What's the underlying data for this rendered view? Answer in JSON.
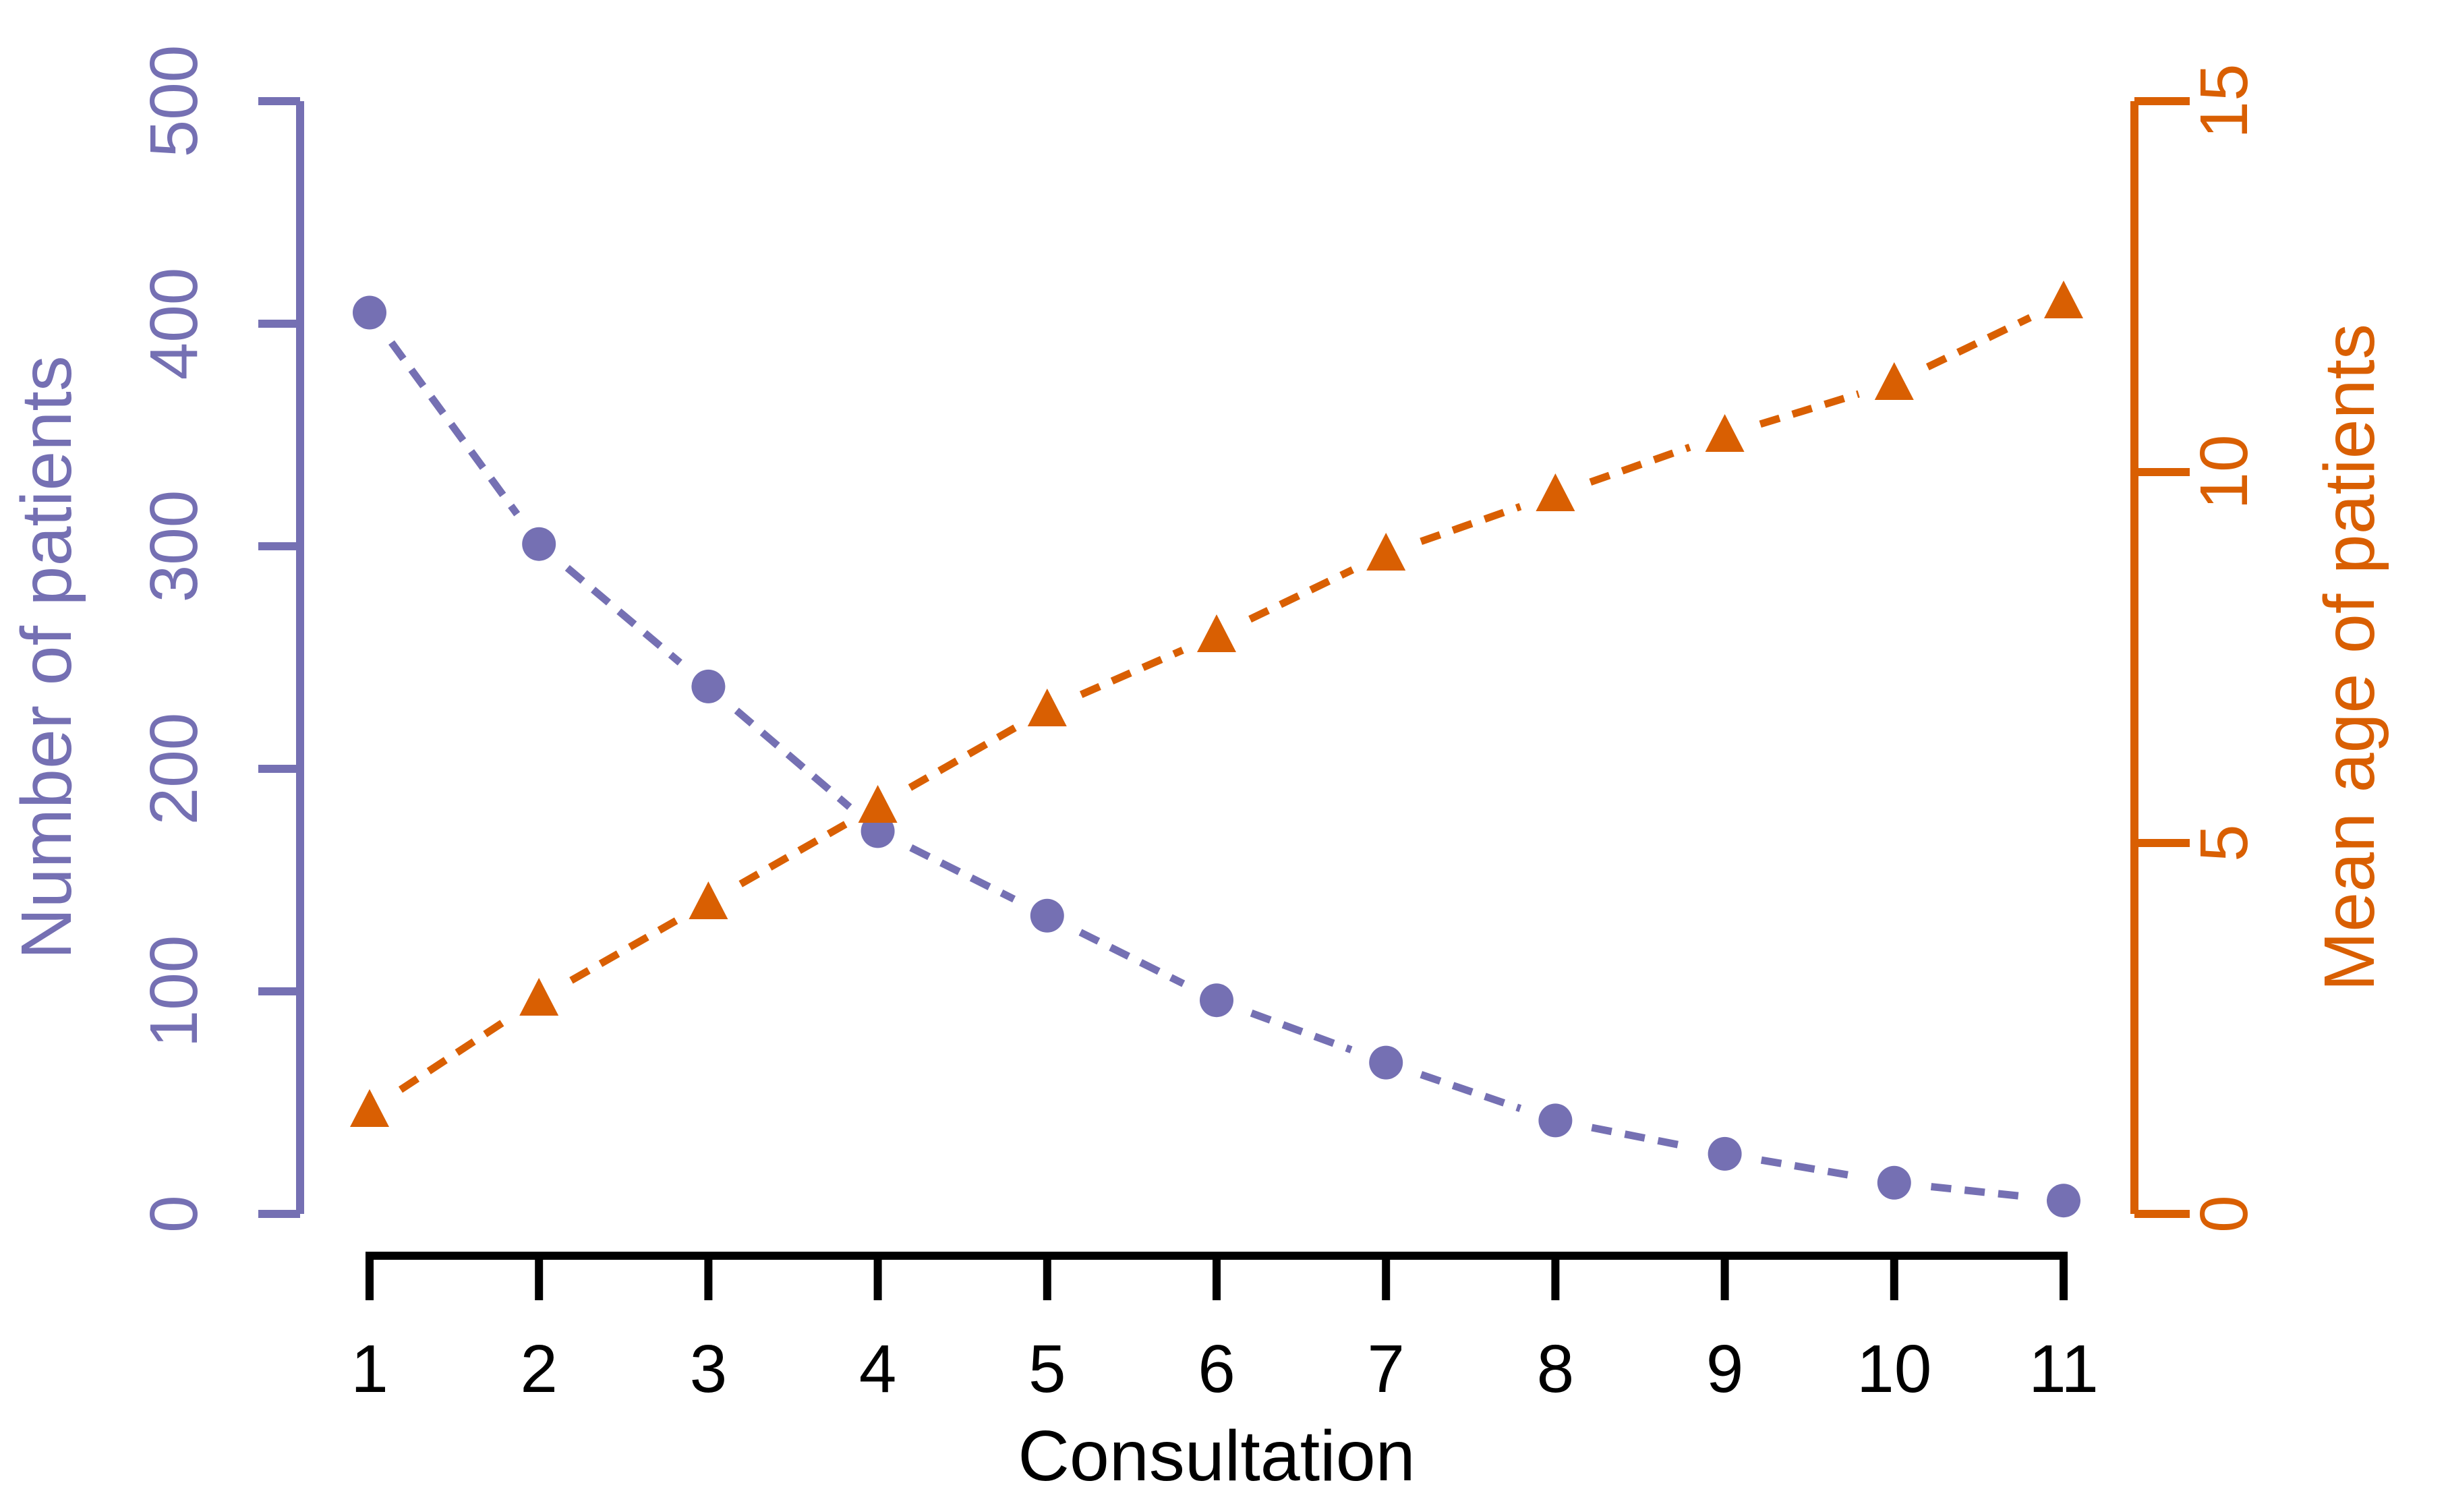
{
  "chart_data": {
    "type": "line",
    "title": "",
    "xlabel": "Consultation",
    "x": [
      1,
      2,
      3,
      4,
      5,
      6,
      7,
      8,
      9,
      10,
      11
    ],
    "xtick_labels": [
      "1",
      "2",
      "3",
      "4",
      "5",
      "6",
      "7",
      "8",
      "9",
      "10",
      "11"
    ],
    "series": [
      {
        "name": "Number of patients",
        "axis": "left",
        "color": "#7570B3",
        "marker": "circle",
        "linestyle": "dashed",
        "values": [
          405,
          301,
          237,
          172,
          134,
          96,
          68,
          42,
          27,
          14,
          6
        ]
      },
      {
        "name": "Mean age of patients",
        "axis": "right",
        "color": "#D95F02",
        "marker": "triangle",
        "linestyle": "dashed",
        "values": [
          1.4,
          2.9,
          4.2,
          5.5,
          6.8,
          7.8,
          8.9,
          9.7,
          10.5,
          11.2,
          12.3
        ]
      }
    ],
    "left_axis": {
      "label": "Number of patients",
      "lim": [
        0,
        500
      ],
      "ticks": [
        0,
        100,
        200,
        300,
        400,
        500
      ],
      "color": "#7570B3"
    },
    "right_axis": {
      "label": "Mean age of patients",
      "lim": [
        0,
        15
      ],
      "ticks": [
        0,
        5,
        10,
        15
      ],
      "color": "#D95F02"
    },
    "bottom_axis": {
      "label": "Consultation",
      "color": "#000000"
    },
    "grid": false,
    "legend": "none",
    "background": "#FFFFFF"
  }
}
